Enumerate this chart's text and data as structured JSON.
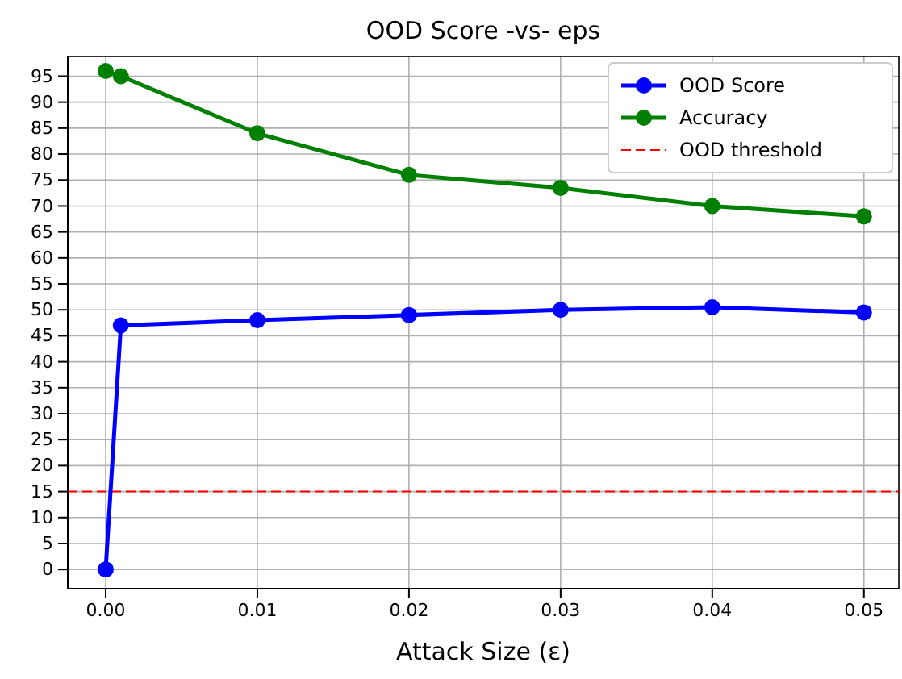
{
  "chart_data": {
    "type": "line",
    "title": "OOD Score -vs- eps",
    "xlabel": "Attack Size (ε)",
    "x": [
      0,
      0.001,
      0.01,
      0.02,
      0.03,
      0.04,
      0.05
    ],
    "series": [
      {
        "name": "OOD Score",
        "color": "#0000ff",
        "values": [
          0,
          47,
          48,
          49,
          50,
          50.5,
          49.5
        ]
      },
      {
        "name": "Accuracy",
        "color": "#008000",
        "values": [
          96,
          95,
          84,
          76,
          73.5,
          70,
          68
        ]
      }
    ],
    "ref_lines": [
      {
        "axis": "y",
        "value": 15,
        "label": "OOD threshold",
        "color": "#ff0000",
        "line_style": "dashed"
      }
    ],
    "xlim": [
      -0.0025,
      0.0523
    ],
    "xticks": [
      {
        "value": 0,
        "label": "0.00"
      },
      {
        "value": 0.01,
        "label": "0.01"
      },
      {
        "value": 0.02,
        "label": "0.02"
      },
      {
        "value": 0.03,
        "label": "0.03"
      },
      {
        "value": 0.04,
        "label": "0.04"
      },
      {
        "value": 0.05,
        "label": "0.05"
      }
    ],
    "ylim": [
      -3.7,
      98.8
    ],
    "yticks": [
      0,
      5,
      10,
      15,
      20,
      25,
      30,
      35,
      40,
      45,
      50,
      55,
      60,
      65,
      70,
      75,
      80,
      85,
      90,
      95
    ],
    "grid": true,
    "legend": "top right",
    "marker": "circle",
    "line_style": "solid"
  }
}
